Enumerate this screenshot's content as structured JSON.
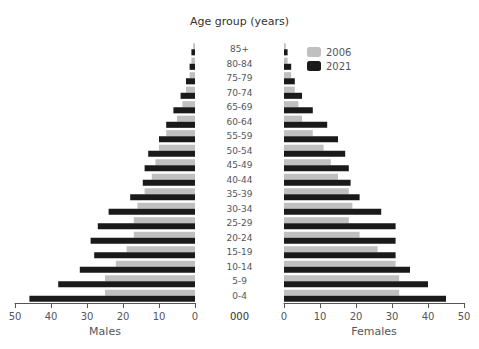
{
  "chart_data": [
    {
      "type": "bar",
      "orientation": "horizontal",
      "xlabel": "Males",
      "ylabel": "Age group (years)",
      "annotations": [
        "000"
      ],
      "categories": [
        "0-4",
        "5-9",
        "10-14",
        "15-19",
        "20-24",
        "25-29",
        "30-34",
        "35-39",
        "40-44",
        "45-49",
        "50-54",
        "55-59",
        "60-64",
        "65-69",
        "70-74",
        "75-79",
        "80-84",
        "85+"
      ],
      "series": [
        {
          "name": "2006",
          "color": "#c0c0c0",
          "values": [
            25.0,
            25.0,
            22.0,
            19.0,
            17.0,
            17.0,
            16.0,
            14.0,
            12.0,
            11.0,
            10.0,
            8.0,
            5.0,
            3.5,
            2.5,
            1.5,
            1.0,
            0.5
          ]
        },
        {
          "name": "2021",
          "color": "#1a1a1a",
          "values": [
            46.0,
            38.0,
            32.0,
            28.0,
            29.0,
            27.0,
            24.0,
            18.0,
            14.5,
            14.0,
            13.0,
            10.0,
            8.0,
            6.0,
            4.0,
            2.5,
            1.5,
            1.0
          ]
        }
      ],
      "xlim": [
        0,
        50
      ],
      "xticks": [
        0,
        10,
        20,
        30,
        40,
        50
      ],
      "grid": false
    },
    {
      "type": "bar",
      "orientation": "horizontal",
      "xlabel": "Females",
      "categories": [
        "0-4",
        "5-9",
        "10-14",
        "15-19",
        "20-24",
        "25-29",
        "30-34",
        "35-39",
        "40-44",
        "45-49",
        "50-54",
        "55-59",
        "60-64",
        "65-69",
        "70-74",
        "75-79",
        "80-84",
        "85+"
      ],
      "series": [
        {
          "name": "2006",
          "color": "#c0c0c0",
          "values": [
            32.0,
            32.0,
            31.0,
            26.0,
            21.0,
            18.0,
            19.0,
            18.0,
            15.0,
            13.0,
            11.0,
            8.0,
            5.0,
            4.0,
            3.0,
            2.0,
            1.0,
            0.5
          ]
        },
        {
          "name": "2021",
          "color": "#1a1a1a",
          "values": [
            45.0,
            40.0,
            35.0,
            31.0,
            31.0,
            31.0,
            27.0,
            21.0,
            18.5,
            18.0,
            17.0,
            15.0,
            12.0,
            8.0,
            5.0,
            3.0,
            2.0,
            1.0
          ]
        }
      ],
      "xlim": [
        0,
        50
      ],
      "xticks": [
        0,
        10,
        20,
        30,
        40,
        50
      ],
      "grid": false,
      "legend": "upper left"
    }
  ]
}
